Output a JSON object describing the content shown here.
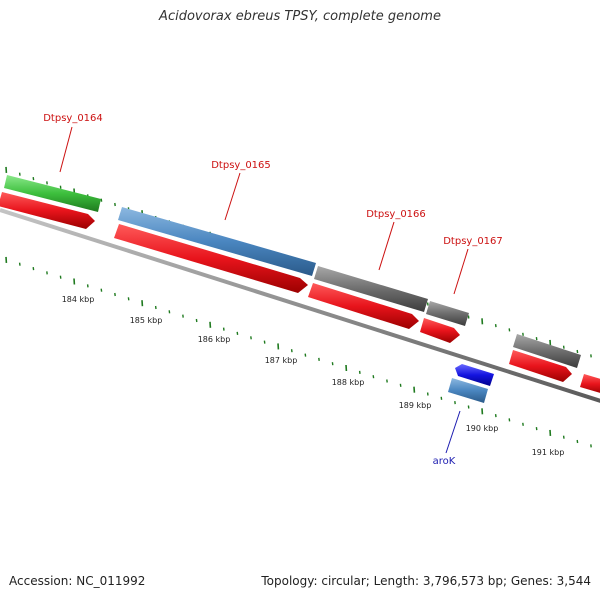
{
  "title": "Acidovorax ebreus TPSY, complete genome",
  "footer": {
    "accession": "Accession: NC_011992",
    "stats": "Topology: circular; Length: 3,796,573 bp; Genes: 3,544"
  },
  "colors": {
    "backbone": "#8c8c8c",
    "cds_forward_red": "#e8141c",
    "gene_green": "#3dbf3d",
    "gene_steelblue": "#4a86c0",
    "gene_grey": "#6e6e6e",
    "gene_blue": "#1414e0",
    "tick_green": "#1f7a1f",
    "label_red": "#cc1111",
    "label_blue": "#1c1cb0"
  },
  "labels": {
    "genes": [
      "Dtpsy_0164",
      "Dtpsy_0165",
      "Dtpsy_0166",
      "Dtpsy_0167",
      "aroK"
    ],
    "kbp": [
      "184 kbp",
      "185 kbp",
      "186 kbp",
      "187 kbp",
      "188 kbp",
      "189 kbp",
      "190 kbp",
      "191 kbp"
    ]
  }
}
